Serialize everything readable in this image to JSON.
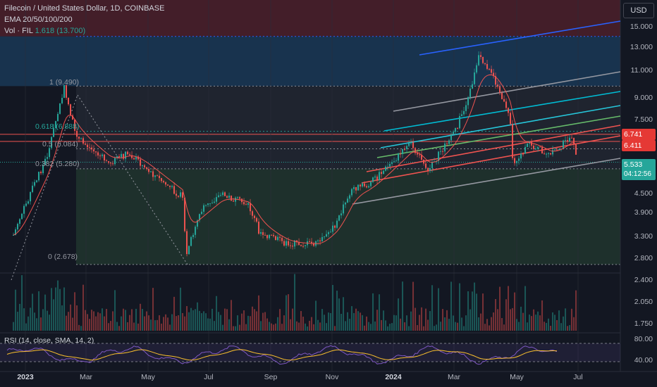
{
  "header": {
    "title": "Filecoin / United States Dollar, 1D, COINBASE",
    "indicator_ema": "EMA 20/50/100/200",
    "volume_label": "Vol · FIL",
    "volume_value": "1.618 (13.700)"
  },
  "currency_button": "USD",
  "rsi_label": "RSI (14, close, SMA, 14, 2)",
  "price_axis": [
    "15.000",
    "13.000",
    "11.000",
    "9.000",
    "7.500",
    "4.500",
    "3.900",
    "3.300",
    "2.800",
    "2.400",
    "2.050",
    "1.750"
  ],
  "rsi_axis": [
    "80.00",
    "40.00"
  ],
  "price_tags": {
    "tag1": "6.741",
    "tag2": "6.411",
    "current_price": "5.533",
    "countdown": "04:12:56"
  },
  "time_axis": [
    {
      "label": "2023",
      "bold": true
    },
    {
      "label": "Mar",
      "bold": false
    },
    {
      "label": "May",
      "bold": false
    },
    {
      "label": "Jul",
      "bold": false
    },
    {
      "label": "Sep",
      "bold": false
    },
    {
      "label": "Nov",
      "bold": false
    },
    {
      "label": "2024",
      "bold": true
    },
    {
      "label": "Mar",
      "bold": false
    },
    {
      "label": "May",
      "bold": false
    },
    {
      "label": "Jul",
      "bold": false
    }
  ],
  "fib_levels": {
    "l1": "1 (9.490)",
    "l0618": "0.618 (6.888)",
    "l05": "0.5 (6.084)",
    "l0382": "0.382 (5.280)",
    "l0": "0 (2.678)"
  },
  "colors": {
    "background": "#131722",
    "up": "#26a69a",
    "down": "#ef5350",
    "ema20": "#ef5350",
    "rsi": "#7e57c2"
  },
  "chart_data": {
    "type": "candlestick",
    "title": "Filecoin / United States Dollar, 1D, COINBASE",
    "x_axis_labels": [
      "2023",
      "Mar",
      "May",
      "Jul",
      "Sep",
      "Nov",
      "2024",
      "Mar",
      "May",
      "Jul"
    ],
    "y_axis_scale": "log",
    "y_ticks": [
      15.0,
      13.0,
      11.0,
      9.0,
      7.5,
      4.5,
      3.9,
      3.3,
      2.8,
      2.4,
      2.05,
      1.75
    ],
    "price_path": [
      {
        "t": "2023-01",
        "price": 3.3
      },
      {
        "t": "2023-01-15",
        "price": 4.3
      },
      {
        "t": "2023-02-01",
        "price": 5.7
      },
      {
        "t": "2023-02-18",
        "price": 9.4
      },
      {
        "t": "2023-03-01",
        "price": 6.6
      },
      {
        "t": "2023-04-01",
        "price": 5.5
      },
      {
        "t": "2023-04-20",
        "price": 5.9
      },
      {
        "t": "2023-05-15",
        "price": 5.0
      },
      {
        "t": "2023-06-10",
        "price": 4.3
      },
      {
        "t": "2023-06-12",
        "price": 2.8
      },
      {
        "t": "2023-06-25",
        "price": 3.9
      },
      {
        "t": "2023-07-15",
        "price": 4.4
      },
      {
        "t": "2023-08-10",
        "price": 4.1
      },
      {
        "t": "2023-08-20",
        "price": 3.4
      },
      {
        "t": "2023-09-15",
        "price": 3.1
      },
      {
        "t": "2023-10-15",
        "price": 3.1
      },
      {
        "t": "2023-11-01",
        "price": 3.6
      },
      {
        "t": "2023-11-15",
        "price": 4.6
      },
      {
        "t": "2023-12-01",
        "price": 4.7
      },
      {
        "t": "2023-12-25",
        "price": 5.6
      },
      {
        "t": "2024-01-10",
        "price": 6.3
      },
      {
        "t": "2024-01-25",
        "price": 5.2
      },
      {
        "t": "2024-02-20",
        "price": 6.8
      },
      {
        "t": "2024-03-05",
        "price": 9.0
      },
      {
        "t": "2024-03-14",
        "price": 11.7
      },
      {
        "t": "2024-03-28",
        "price": 10.0
      },
      {
        "t": "2024-04-12",
        "price": 7.5
      },
      {
        "t": "2024-04-15",
        "price": 5.5
      },
      {
        "t": "2024-05-01",
        "price": 6.3
      },
      {
        "t": "2024-05-20",
        "price": 5.8
      },
      {
        "t": "2024-06-10",
        "price": 6.7
      },
      {
        "t": "2024-06-15",
        "price": 5.533
      }
    ],
    "fibonacci": [
      {
        "ratio": 1,
        "price": 9.49
      },
      {
        "ratio": 0.618,
        "price": 6.888
      },
      {
        "ratio": 0.5,
        "price": 6.084
      },
      {
        "ratio": 0.382,
        "price": 5.28
      },
      {
        "ratio": 0,
        "price": 2.678
      }
    ],
    "last_price": 5.533,
    "price_labels": [
      6.741,
      6.411
    ],
    "rsi": {
      "length": 14,
      "levels": [
        80,
        40
      ]
    }
  }
}
